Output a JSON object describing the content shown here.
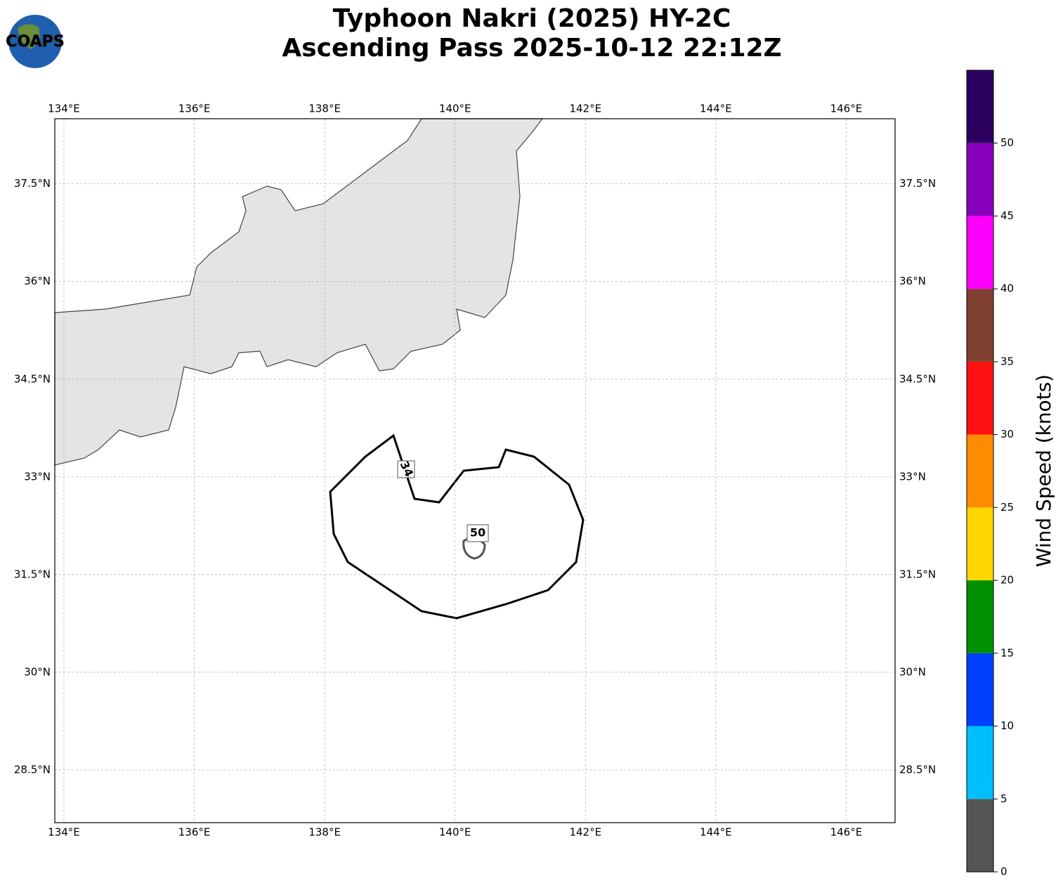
{
  "header": {
    "title": [
      "Typhoon Nakri (2025) HY-2C",
      "Ascending Pass 2025-10-12 22:12Z"
    ],
    "logo": "COAPS"
  },
  "map": {
    "xlim": [
      133.86,
      146.75
    ],
    "ylim": [
      27.69,
      38.5
    ],
    "xticks": [
      {
        "value": 134,
        "label": "134°E"
      },
      {
        "value": 136,
        "label": "136°E"
      },
      {
        "value": 138,
        "label": "138°E"
      },
      {
        "value": 140,
        "label": "140°E"
      },
      {
        "value": 142,
        "label": "142°E"
      },
      {
        "value": 144,
        "label": "144°E"
      },
      {
        "value": 146,
        "label": "146°E"
      }
    ],
    "yticks": [
      {
        "value": 28.5,
        "label": "28.5°N"
      },
      {
        "value": 30,
        "label": "30°N"
      },
      {
        "value": 31.5,
        "label": "31.5°N"
      },
      {
        "value": 33,
        "label": "33°N"
      },
      {
        "value": 34.5,
        "label": "34.5°N"
      },
      {
        "value": 36,
        "label": "36°N"
      },
      {
        "value": 37.5,
        "label": "37.5°N"
      }
    ],
    "grid": true,
    "contours": [
      {
        "label": "34"
      },
      {
        "label": "50"
      }
    ]
  },
  "colorbar": {
    "label": "Wind Speed (knots)",
    "bounds": [
      0,
      5,
      10,
      15,
      20,
      25,
      30,
      35,
      40,
      45,
      50,
      55
    ],
    "colors": [
      "#555555",
      "#00bfff",
      "#0040ff",
      "#009000",
      "#ffd700",
      "#ff8c00",
      "#ff1010",
      "#7f3f2f",
      "#ff00ff",
      "#8800bb",
      "#2b0060"
    ],
    "ticks": [
      0,
      5,
      10,
      15,
      20,
      25,
      30,
      35,
      40,
      45,
      50
    ]
  }
}
